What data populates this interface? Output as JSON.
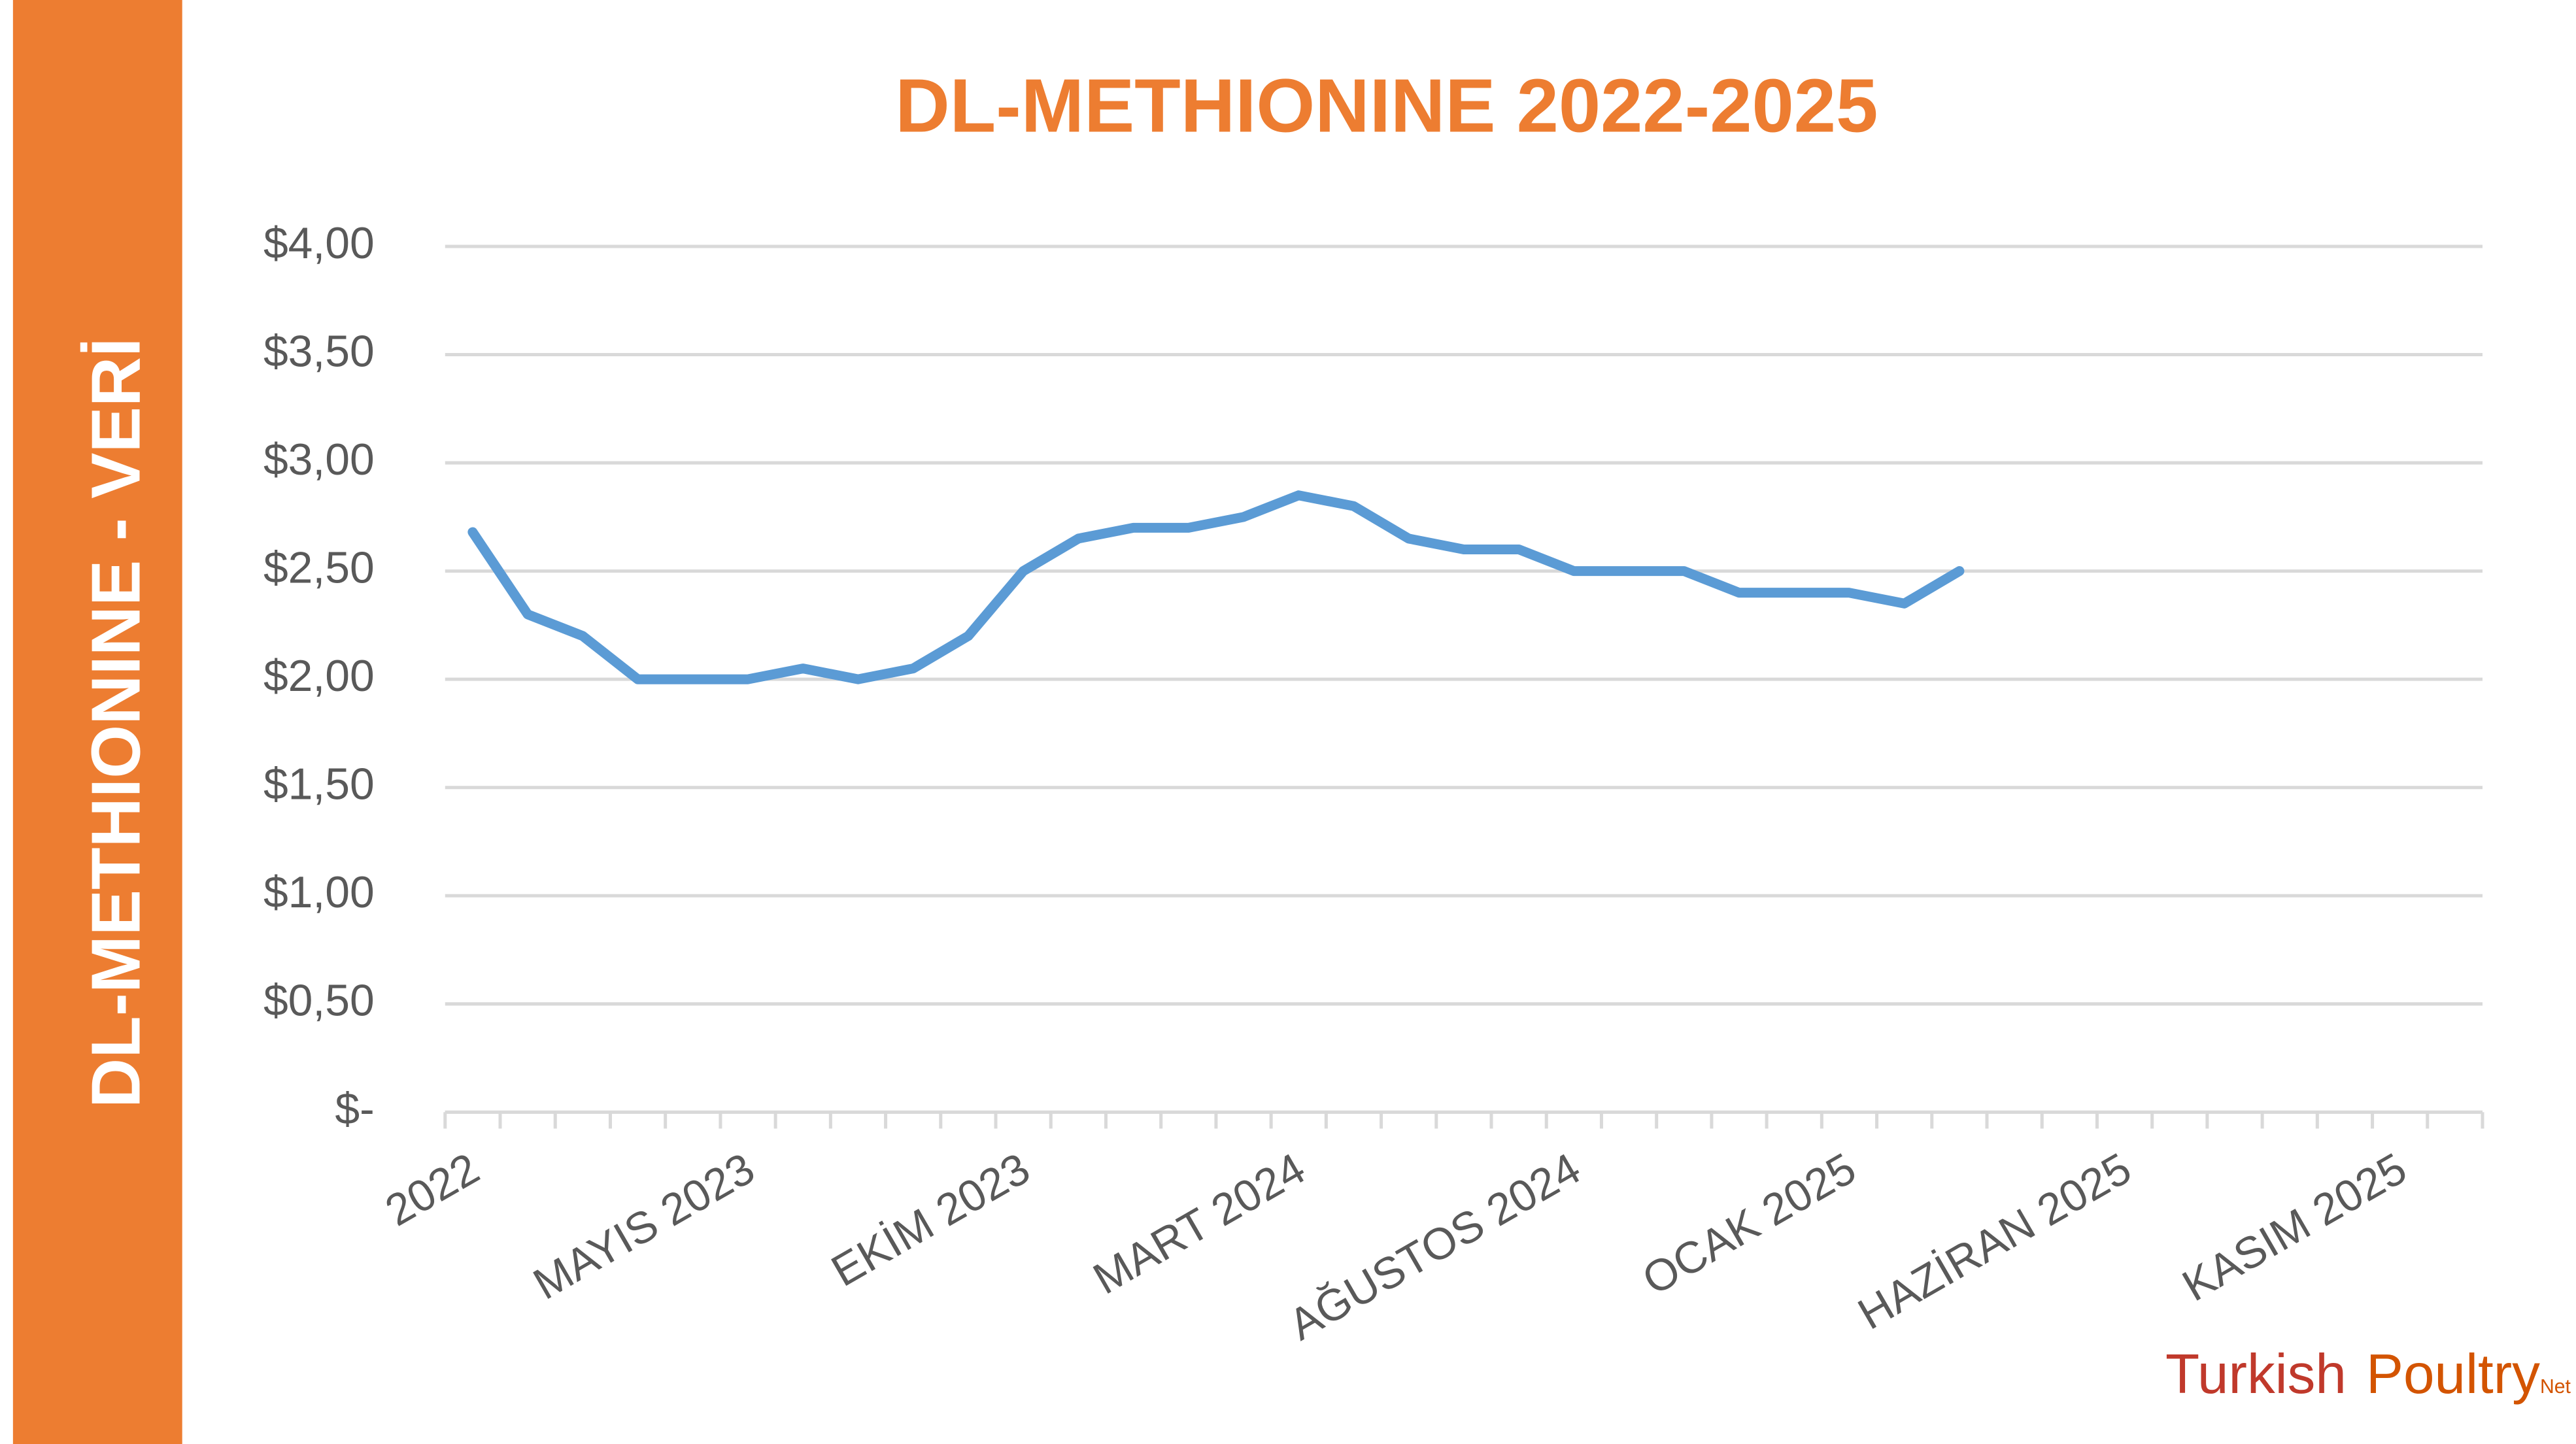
{
  "sidebar": "DL-METHIONINE - VERİ",
  "logo": [
    "Turkish",
    "Poultry",
    "Net"
  ],
  "chart_data": {
    "type": "line",
    "title": "DL-METHIONINE 2022-2025",
    "categories": [
      "2022",
      null,
      null,
      null,
      null,
      "MAYIS 2023",
      null,
      null,
      null,
      null,
      "EKİM 2023",
      null,
      null,
      null,
      null,
      "MART 2024",
      null,
      null,
      null,
      null,
      "AĞUSTOS 2024",
      null,
      null,
      null,
      null,
      "OCAK 2025",
      null,
      null,
      null,
      null,
      "HAZİRAN 2025",
      null,
      null,
      null,
      null,
      "KASIM 2025",
      null
    ],
    "values": [
      2.68,
      2.3,
      2.2,
      2.0,
      2.0,
      2.0,
      2.05,
      2.0,
      2.05,
      2.2,
      2.5,
      2.65,
      2.7,
      2.7,
      2.75,
      2.85,
      2.8,
      2.65,
      2.6,
      2.6,
      2.5,
      2.5,
      2.5,
      2.4,
      2.4,
      2.4,
      2.35,
      2.5,
      null,
      null,
      null,
      null,
      null,
      null,
      null,
      null,
      null
    ],
    "color": "#5b9bd5",
    "ylim": [
      0,
      4
    ],
    "yticks": [
      {
        "value": 0,
        "label": "$-"
      },
      {
        "value": 0.5,
        "label": "$0,50"
      },
      {
        "value": 1,
        "label": "$1,00"
      },
      {
        "value": 1.5,
        "label": "$1,50"
      },
      {
        "value": 2,
        "label": "$2,00"
      },
      {
        "value": 2.5,
        "label": "$2,50"
      },
      {
        "value": 3,
        "label": "$3,00"
      },
      {
        "value": 3.5,
        "label": "$3,50"
      },
      {
        "value": 4,
        "label": "$4,00"
      }
    ],
    "grid": true
  }
}
